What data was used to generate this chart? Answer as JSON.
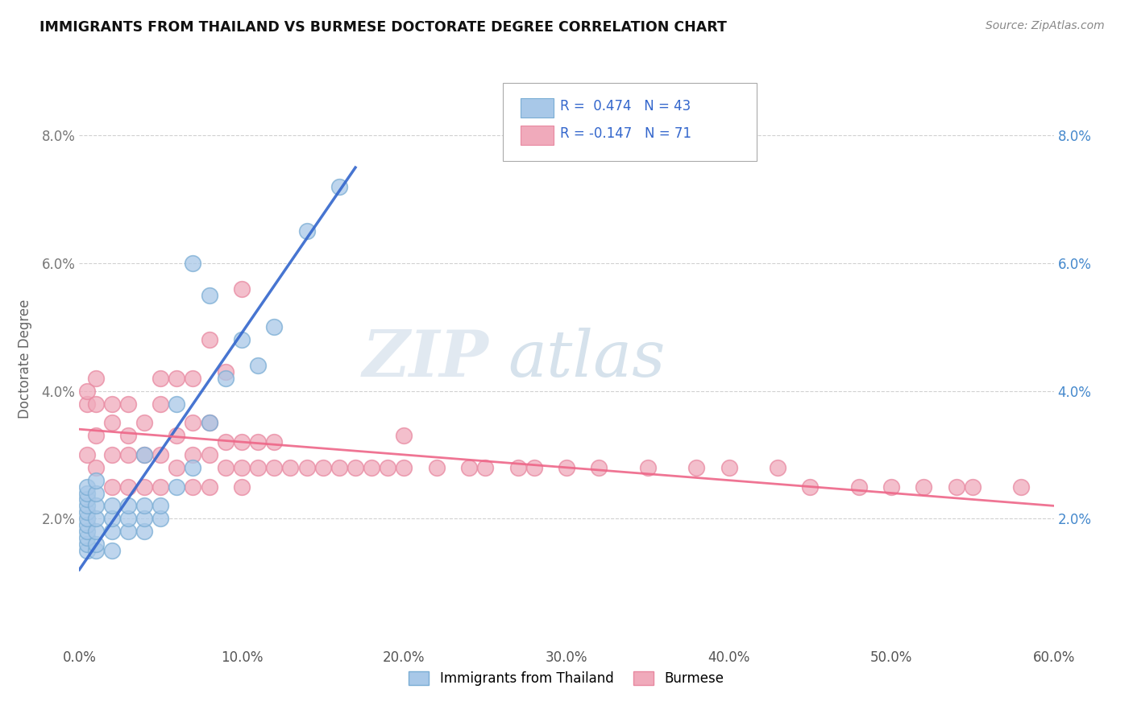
{
  "title": "IMMIGRANTS FROM THAILAND VS BURMESE DOCTORATE DEGREE CORRELATION CHART",
  "source": "Source: ZipAtlas.com",
  "xlabel": "",
  "ylabel": "Doctorate Degree",
  "xlim": [
    0.0,
    0.6
  ],
  "ylim": [
    0.0,
    0.09
  ],
  "xtick_labels": [
    "0.0%",
    "",
    "",
    "",
    "",
    "",
    "",
    "",
    "",
    "",
    "10.0%",
    "",
    "",
    "",
    "",
    "",
    "",
    "",
    "",
    "",
    "20.0%",
    "",
    "",
    "",
    "",
    "",
    "",
    "",
    "",
    "",
    "30.0%",
    "",
    "",
    "",
    "",
    "",
    "",
    "",
    "",
    "",
    "40.0%",
    "",
    "",
    "",
    "",
    "",
    "",
    "",
    "",
    "",
    "50.0%",
    "",
    "",
    "",
    "",
    "",
    "",
    "",
    "",
    "",
    "60.0%"
  ],
  "xtick_values": [
    0.0,
    0.01,
    0.02,
    0.03,
    0.04,
    0.05,
    0.06,
    0.07,
    0.08,
    0.09,
    0.1,
    0.11,
    0.12,
    0.13,
    0.14,
    0.15,
    0.16,
    0.17,
    0.18,
    0.19,
    0.2,
    0.21,
    0.22,
    0.23,
    0.24,
    0.25,
    0.26,
    0.27,
    0.28,
    0.29,
    0.3,
    0.31,
    0.32,
    0.33,
    0.34,
    0.35,
    0.36,
    0.37,
    0.38,
    0.39,
    0.4,
    0.41,
    0.42,
    0.43,
    0.44,
    0.45,
    0.46,
    0.47,
    0.48,
    0.49,
    0.5,
    0.51,
    0.52,
    0.53,
    0.54,
    0.55,
    0.56,
    0.57,
    0.58,
    0.59,
    0.6
  ],
  "xtick_major_labels": [
    "0.0%",
    "10.0%",
    "20.0%",
    "30.0%",
    "40.0%",
    "50.0%",
    "60.0%"
  ],
  "xtick_major_values": [
    0.0,
    0.1,
    0.2,
    0.3,
    0.4,
    0.5,
    0.6
  ],
  "ytick_labels": [
    "2.0%",
    "4.0%",
    "6.0%",
    "8.0%"
  ],
  "ytick_values": [
    0.02,
    0.04,
    0.06,
    0.08
  ],
  "blue_r": 0.474,
  "blue_n": 43,
  "pink_r": -0.147,
  "pink_n": 71,
  "blue_color": "#a8c8e8",
  "pink_color": "#f0aabb",
  "blue_edge_color": "#7aadd4",
  "pink_edge_color": "#e888a0",
  "blue_line_color": "#3366cc",
  "pink_line_color": "#ee6688",
  "legend_blue_label": "Immigrants from Thailand",
  "legend_pink_label": "Burmese",
  "watermark_zip": "ZIP",
  "watermark_atlas": "atlas",
  "grid_color": "#cccccc",
  "blue_scatter_x": [
    0.005,
    0.005,
    0.005,
    0.005,
    0.005,
    0.005,
    0.005,
    0.005,
    0.005,
    0.005,
    0.005,
    0.01,
    0.01,
    0.01,
    0.01,
    0.01,
    0.01,
    0.01,
    0.02,
    0.02,
    0.02,
    0.02,
    0.03,
    0.03,
    0.03,
    0.04,
    0.04,
    0.04,
    0.04,
    0.05,
    0.05,
    0.06,
    0.06,
    0.07,
    0.07,
    0.08,
    0.08,
    0.09,
    0.1,
    0.11,
    0.12,
    0.14,
    0.16
  ],
  "blue_scatter_y": [
    0.015,
    0.016,
    0.017,
    0.018,
    0.019,
    0.02,
    0.021,
    0.022,
    0.023,
    0.024,
    0.025,
    0.015,
    0.016,
    0.018,
    0.02,
    0.022,
    0.024,
    0.026,
    0.015,
    0.018,
    0.02,
    0.022,
    0.018,
    0.02,
    0.022,
    0.018,
    0.02,
    0.022,
    0.03,
    0.02,
    0.022,
    0.025,
    0.038,
    0.028,
    0.06,
    0.035,
    0.055,
    0.042,
    0.048,
    0.044,
    0.05,
    0.065,
    0.072
  ],
  "pink_scatter_x": [
    0.005,
    0.005,
    0.005,
    0.01,
    0.01,
    0.01,
    0.01,
    0.02,
    0.02,
    0.02,
    0.02,
    0.03,
    0.03,
    0.03,
    0.03,
    0.04,
    0.04,
    0.04,
    0.05,
    0.05,
    0.05,
    0.06,
    0.06,
    0.07,
    0.07,
    0.07,
    0.08,
    0.08,
    0.08,
    0.09,
    0.09,
    0.1,
    0.1,
    0.1,
    0.11,
    0.11,
    0.12,
    0.12,
    0.13,
    0.14,
    0.15,
    0.16,
    0.17,
    0.18,
    0.19,
    0.2,
    0.22,
    0.24,
    0.25,
    0.27,
    0.28,
    0.3,
    0.32,
    0.35,
    0.38,
    0.4,
    0.43,
    0.45,
    0.48,
    0.5,
    0.52,
    0.54,
    0.55,
    0.58,
    0.05,
    0.06,
    0.07,
    0.08,
    0.09,
    0.1,
    0.2
  ],
  "pink_scatter_y": [
    0.03,
    0.038,
    0.04,
    0.028,
    0.033,
    0.038,
    0.042,
    0.025,
    0.03,
    0.035,
    0.038,
    0.025,
    0.03,
    0.033,
    0.038,
    0.025,
    0.03,
    0.035,
    0.025,
    0.03,
    0.038,
    0.028,
    0.033,
    0.025,
    0.03,
    0.035,
    0.025,
    0.03,
    0.035,
    0.028,
    0.032,
    0.028,
    0.032,
    0.056,
    0.028,
    0.032,
    0.028,
    0.032,
    0.028,
    0.028,
    0.028,
    0.028,
    0.028,
    0.028,
    0.028,
    0.028,
    0.028,
    0.028,
    0.028,
    0.028,
    0.028,
    0.028,
    0.028,
    0.028,
    0.028,
    0.028,
    0.028,
    0.025,
    0.025,
    0.025,
    0.025,
    0.025,
    0.025,
    0.025,
    0.042,
    0.042,
    0.042,
    0.048,
    0.043,
    0.025,
    0.033
  ]
}
